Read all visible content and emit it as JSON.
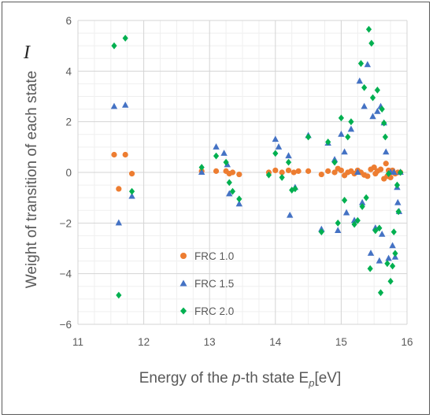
{
  "chart_data": {
    "type": "scatter",
    "xlabel": {
      "pre": "Energy of the ",
      "var": "p",
      "mid": "-th state E",
      "sub": "p",
      "post": "[eV]"
    },
    "ylabel": "Weight of transition of each state",
    "ylabel_symbol": "I",
    "xlim": [
      11,
      16
    ],
    "ylim": [
      -6,
      6
    ],
    "xticks": [
      11,
      12,
      13,
      14,
      15,
      16
    ],
    "yticks": [
      -6,
      -4,
      -2,
      0,
      2,
      4,
      6
    ],
    "ytick_labels": [
      "−6",
      "−4",
      "−2",
      "0",
      "2",
      "4",
      "6"
    ],
    "grid": {
      "x_major": 1,
      "x_minor": 0.25,
      "y_major": 2,
      "y_minor": 0.5
    },
    "legend_position": "lower-left",
    "series": [
      {
        "name": "FRC 1.0",
        "marker": "circle",
        "color": "#ED7D31",
        "points": [
          [
            11.55,
            0.7
          ],
          [
            11.62,
            -0.65
          ],
          [
            11.72,
            0.7
          ],
          [
            11.82,
            -0.05
          ],
          [
            12.88,
            0.05
          ],
          [
            13.1,
            0.05
          ],
          [
            13.25,
            0.05
          ],
          [
            13.3,
            -0.05
          ],
          [
            13.35,
            0.0
          ],
          [
            13.45,
            -0.08
          ],
          [
            13.9,
            0.0
          ],
          [
            14.0,
            0.08
          ],
          [
            14.1,
            0.0
          ],
          [
            14.2,
            0.08
          ],
          [
            14.28,
            0.0
          ],
          [
            14.35,
            0.05
          ],
          [
            14.5,
            0.05
          ],
          [
            14.7,
            -0.08
          ],
          [
            14.8,
            0.05
          ],
          [
            14.9,
            0.0
          ],
          [
            14.95,
            0.15
          ],
          [
            15.0,
            0.08
          ],
          [
            15.05,
            -0.12
          ],
          [
            15.1,
            0.0
          ],
          [
            15.15,
            0.05
          ],
          [
            15.2,
            -0.05
          ],
          [
            15.25,
            0.08
          ],
          [
            15.3,
            0.0
          ],
          [
            15.35,
            -0.1
          ],
          [
            15.4,
            -0.15
          ],
          [
            15.45,
            0.12
          ],
          [
            15.5,
            0.2
          ],
          [
            15.52,
            -0.05
          ],
          [
            15.55,
            0.05
          ],
          [
            15.6,
            0.12
          ],
          [
            15.65,
            -0.25
          ],
          [
            15.68,
            0.35
          ],
          [
            15.7,
            -0.15
          ],
          [
            15.72,
            0.08
          ],
          [
            15.75,
            -0.2
          ],
          [
            15.78,
            0.08
          ],
          [
            15.82,
            -0.05
          ],
          [
            15.86,
            0.0
          ],
          [
            15.9,
            0.0
          ]
        ]
      },
      {
        "name": "FRC 1.5",
        "marker": "triangle",
        "color": "#4472C4",
        "points": [
          [
            11.55,
            2.6
          ],
          [
            11.62,
            -2.0
          ],
          [
            11.72,
            2.65
          ],
          [
            11.82,
            -0.95
          ],
          [
            12.88,
            0.0
          ],
          [
            13.1,
            1.0
          ],
          [
            13.22,
            0.75
          ],
          [
            13.27,
            0.3
          ],
          [
            13.3,
            -0.85
          ],
          [
            13.45,
            -1.25
          ],
          [
            14.0,
            1.3
          ],
          [
            14.05,
            1.0
          ],
          [
            14.2,
            0.65
          ],
          [
            14.22,
            -1.7
          ],
          [
            14.3,
            -0.6
          ],
          [
            14.5,
            1.45
          ],
          [
            14.7,
            -2.25
          ],
          [
            14.8,
            1.15
          ],
          [
            14.9,
            0.5
          ],
          [
            14.95,
            -2.3
          ],
          [
            15.0,
            1.5
          ],
          [
            15.05,
            0.8
          ],
          [
            15.08,
            -1.6
          ],
          [
            15.15,
            1.7
          ],
          [
            15.2,
            -1.9
          ],
          [
            15.25,
            0.0
          ],
          [
            15.28,
            3.6
          ],
          [
            15.32,
            -1.2
          ],
          [
            15.35,
            2.6
          ],
          [
            15.4,
            4.25
          ],
          [
            15.45,
            -3.2
          ],
          [
            15.48,
            2.2
          ],
          [
            15.52,
            -2.2
          ],
          [
            15.55,
            2.4
          ],
          [
            15.58,
            -3.5
          ],
          [
            15.6,
            2.6
          ],
          [
            15.62,
            -2.45
          ],
          [
            15.65,
            1.95
          ],
          [
            15.68,
            0.8
          ],
          [
            15.72,
            -3.4
          ],
          [
            15.75,
            0.0
          ],
          [
            15.78,
            -2.9
          ],
          [
            15.8,
            0.0
          ],
          [
            15.82,
            -3.35
          ],
          [
            15.85,
            -0.6
          ],
          [
            15.86,
            -1.2
          ],
          [
            15.88,
            -1.55
          ],
          [
            15.9,
            0.0
          ]
        ]
      },
      {
        "name": "FRC 2.0",
        "marker": "diamond",
        "color": "#00B050",
        "points": [
          [
            11.55,
            5.0
          ],
          [
            11.62,
            -4.85
          ],
          [
            11.72,
            5.3
          ],
          [
            11.82,
            -0.75
          ],
          [
            12.88,
            0.2
          ],
          [
            13.1,
            0.65
          ],
          [
            13.25,
            0.4
          ],
          [
            13.3,
            -0.4
          ],
          [
            13.35,
            -0.75
          ],
          [
            13.45,
            -1.05
          ],
          [
            13.9,
            -0.1
          ],
          [
            14.0,
            0.75
          ],
          [
            14.1,
            -0.2
          ],
          [
            14.2,
            0.4
          ],
          [
            14.25,
            -0.7
          ],
          [
            14.3,
            -0.65
          ],
          [
            14.5,
            1.4
          ],
          [
            14.7,
            -2.35
          ],
          [
            14.8,
            1.2
          ],
          [
            14.9,
            0.4
          ],
          [
            14.95,
            -2.0
          ],
          [
            15.0,
            2.15
          ],
          [
            15.05,
            -1.1
          ],
          [
            15.1,
            1.4
          ],
          [
            15.15,
            2.0
          ],
          [
            15.2,
            -2.05
          ],
          [
            15.25,
            -1.9
          ],
          [
            15.3,
            4.3
          ],
          [
            15.32,
            -1.35
          ],
          [
            15.35,
            3.35
          ],
          [
            15.38,
            -1.0
          ],
          [
            15.42,
            5.65
          ],
          [
            15.44,
            -3.8
          ],
          [
            15.46,
            5.1
          ],
          [
            15.48,
            2.95
          ],
          [
            15.52,
            -2.3
          ],
          [
            15.55,
            3.25
          ],
          [
            15.58,
            -2.2
          ],
          [
            15.6,
            -4.75
          ],
          [
            15.62,
            2.5
          ],
          [
            15.65,
            1.95
          ],
          [
            15.67,
            1.4
          ],
          [
            15.7,
            -3.6
          ],
          [
            15.72,
            -0.05
          ],
          [
            15.75,
            -4.3
          ],
          [
            15.78,
            -3.7
          ],
          [
            15.8,
            -2.35
          ],
          [
            15.82,
            -3.2
          ],
          [
            15.85,
            -0.5
          ],
          [
            15.87,
            -1.55
          ],
          [
            15.9,
            0.0
          ]
        ]
      }
    ]
  }
}
